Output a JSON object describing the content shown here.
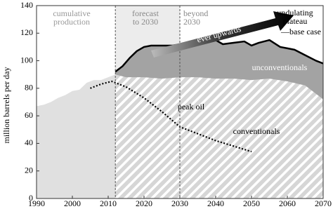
{
  "chart_data": {
    "type": "area",
    "y_label": "million barrels per day",
    "xlim": [
      1990,
      2070
    ],
    "ylim": [
      0,
      140
    ],
    "xticks": [
      1990,
      2000,
      2010,
      2020,
      2030,
      2040,
      2050,
      2060,
      2070
    ],
    "yticks": [
      0,
      20,
      40,
      60,
      80,
      100,
      120,
      140
    ],
    "dividers": [
      2012,
      2030
    ],
    "periods": [
      {
        "label_lines": [
          "cumulative",
          "production"
        ]
      },
      {
        "label_lines": [
          "forecast",
          "to 2030"
        ]
      },
      {
        "label_lines": [
          "beyond",
          "2030"
        ]
      }
    ],
    "annotations": [
      {
        "label_lines": [
          "undulating",
          "plateau"
        ]
      },
      {
        "label_lines": [
          "ever upwards"
        ]
      },
      {
        "label_lines": [
          "unconventionals"
        ]
      }
    ],
    "series": [
      {
        "name": "cumulative production",
        "style": "area",
        "color": "#e0e0e0",
        "x": [
          1990,
          1992,
          1994,
          1996,
          1998,
          2000,
          2002,
          2004,
          2006,
          2008,
          2010,
          2012
        ],
        "values": [
          67,
          68,
          70,
          73,
          75,
          78,
          79,
          84,
          86,
          86,
          88,
          90
        ]
      },
      {
        "name": "—base case",
        "style": "area-line",
        "color": "#a3a3a3",
        "x": [
          2012,
          2014,
          2016,
          2018,
          2020,
          2022,
          2025,
          2028,
          2030,
          2032,
          2035,
          2038,
          2040,
          2042,
          2045,
          2048,
          2050,
          2052,
          2055,
          2058,
          2060,
          2062,
          2065,
          2068,
          2070
        ],
        "values": [
          92,
          96,
          102,
          107,
          110,
          111,
          111,
          111,
          112,
          111,
          113,
          114,
          115,
          112,
          113,
          114,
          111,
          113,
          115,
          110,
          109,
          108,
          104,
          100,
          98
        ]
      },
      {
        "name": "conventionals",
        "style": "hatched-area",
        "color": "#d6d6d6",
        "x": [
          2012,
          2015,
          2020,
          2025,
          2030,
          2035,
          2040,
          2045,
          2050,
          2055,
          2060,
          2065,
          2070
        ],
        "values": [
          90,
          88,
          88,
          87,
          88,
          88,
          87,
          87,
          86,
          87,
          85,
          82,
          72
        ]
      },
      {
        "name": "peak oil",
        "style": "dotted-line",
        "color": "#000000",
        "x": [
          2005,
          2008,
          2011,
          2015,
          2020,
          2025,
          2030,
          2035,
          2040,
          2045,
          2050
        ],
        "values": [
          80,
          83,
          85,
          81,
          73,
          63,
          52,
          47,
          42,
          38,
          34
        ]
      }
    ]
  }
}
